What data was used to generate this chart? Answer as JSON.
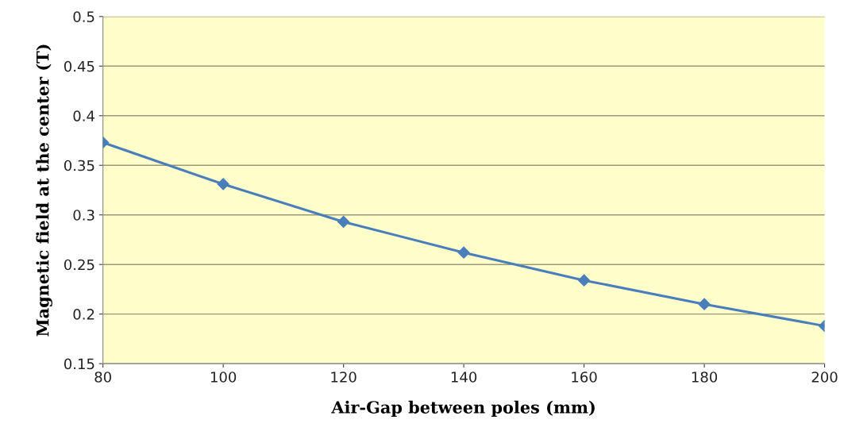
{
  "chart_data": {
    "type": "line",
    "xlabel": "Air-Gap between poles (mm)",
    "ylabel": "Magnetic field at the center (T)",
    "x": [
      80,
      100,
      120,
      140,
      160,
      180,
      200
    ],
    "series": [
      {
        "color": "#4a7ebb",
        "values": [
          0.373,
          0.331,
          0.293,
          0.262,
          0.234,
          0.21,
          0.188
        ]
      }
    ],
    "xlim": [
      80,
      200
    ],
    "xticks": [
      80,
      100,
      120,
      140,
      160,
      180,
      200
    ],
    "ylim": [
      0.15,
      0.5
    ],
    "yticks": [
      {
        "value": 0.15,
        "label": "0.15"
      },
      {
        "value": 0.2,
        "label": "0.2"
      },
      {
        "value": 0.25,
        "label": "0.25"
      },
      {
        "value": 0.3,
        "label": "0.3"
      },
      {
        "value": 0.35,
        "label": "0.35"
      },
      {
        "value": 0.4,
        "label": "0.4"
      },
      {
        "value": 0.45,
        "label": "0.45"
      },
      {
        "value": 0.5,
        "label": "0.5"
      }
    ],
    "grid": "y",
    "marker": "diamond",
    "line_style": "solid",
    "legend": false
  }
}
